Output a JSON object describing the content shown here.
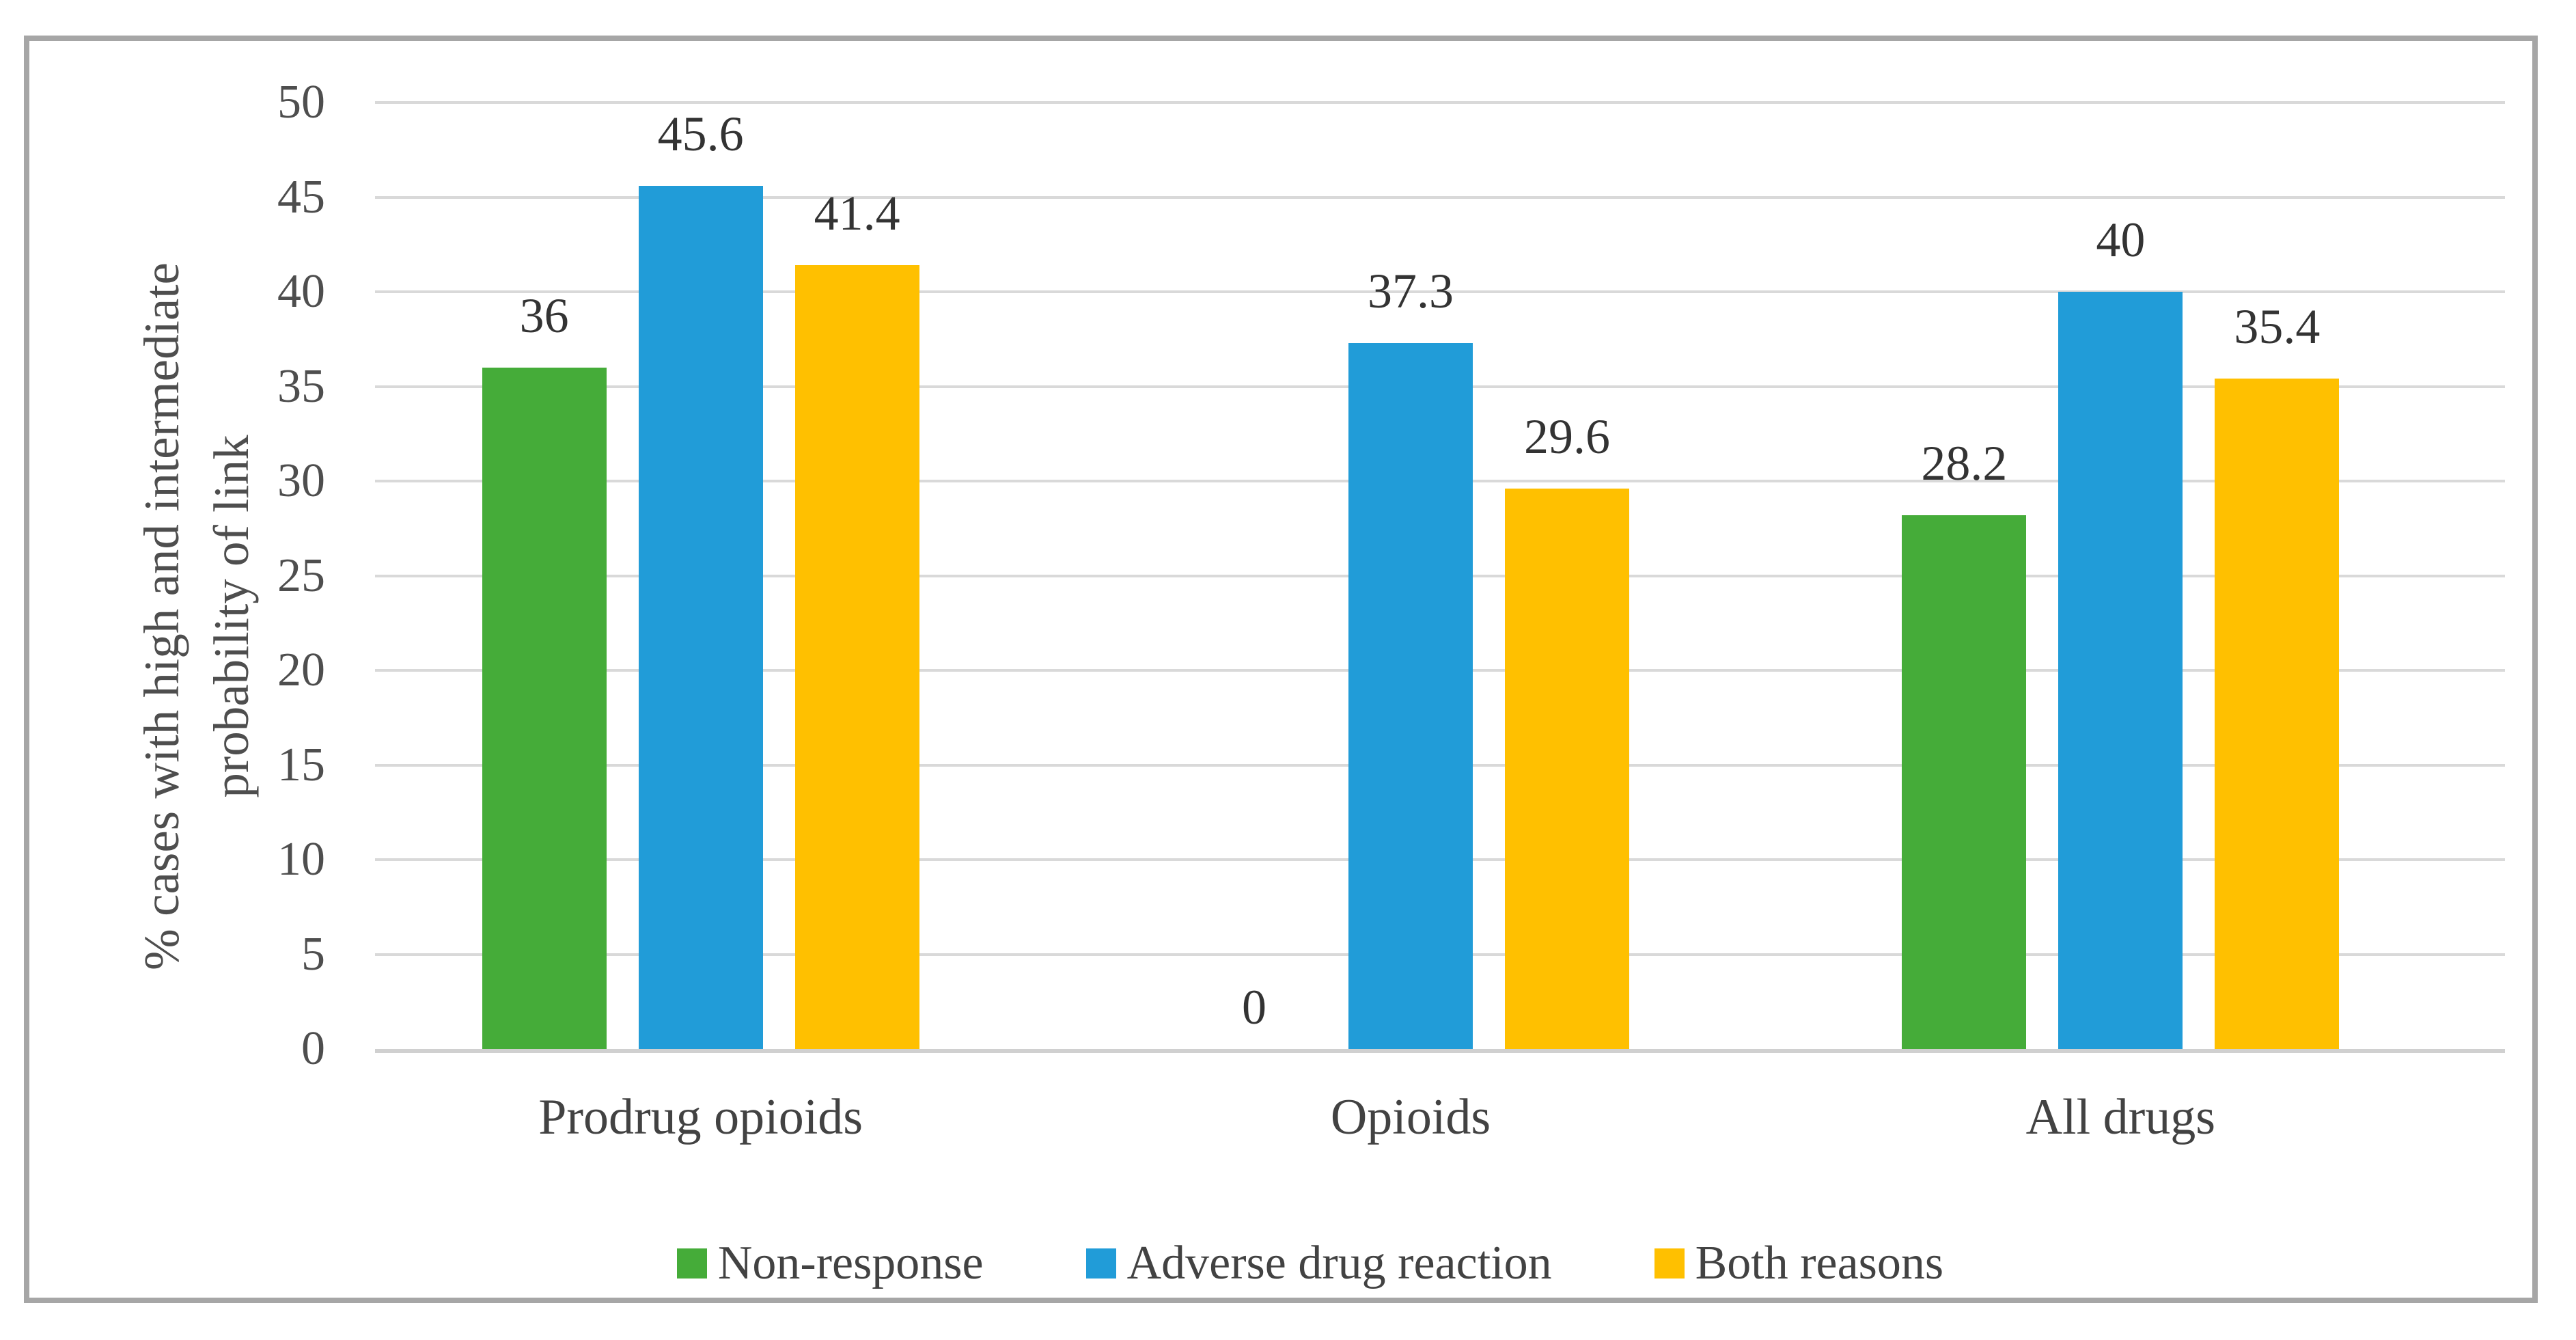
{
  "chart_data": {
    "type": "bar",
    "title": "",
    "categories": [
      "Prodrug opioids",
      "Opioids",
      "All drugs"
    ],
    "series": [
      {
        "name": "Non-response",
        "color": "#45AC39",
        "values": [
          36,
          0,
          28.2
        ]
      },
      {
        "name": "Adverse drug reaction",
        "color": "#219CD8",
        "values": [
          45.6,
          37.3,
          40
        ]
      },
      {
        "name": "Both reasons",
        "color": "#FFC000",
        "values": [
          41.4,
          29.6,
          35.4
        ]
      }
    ],
    "ylabel_lines": [
      "% cases with high and intermediate",
      "probability of link"
    ],
    "xlabel": "",
    "yticks": [
      0,
      5,
      10,
      15,
      20,
      25,
      30,
      35,
      40,
      45,
      50
    ],
    "ylim": [
      0,
      50
    ],
    "grid": "horizontal",
    "legend_position": "bottom",
    "data_labels_position": "outside-end"
  },
  "style_colors": {
    "frame_border": "#A6A6A6",
    "gridline": "#D9D9D9",
    "axis_line": "#D0D0D0",
    "axis_text": "#4E4E4E",
    "label_text": "#333333",
    "category_text": "#424242",
    "legend_text": "#424242",
    "background": "#FFFFFF"
  }
}
